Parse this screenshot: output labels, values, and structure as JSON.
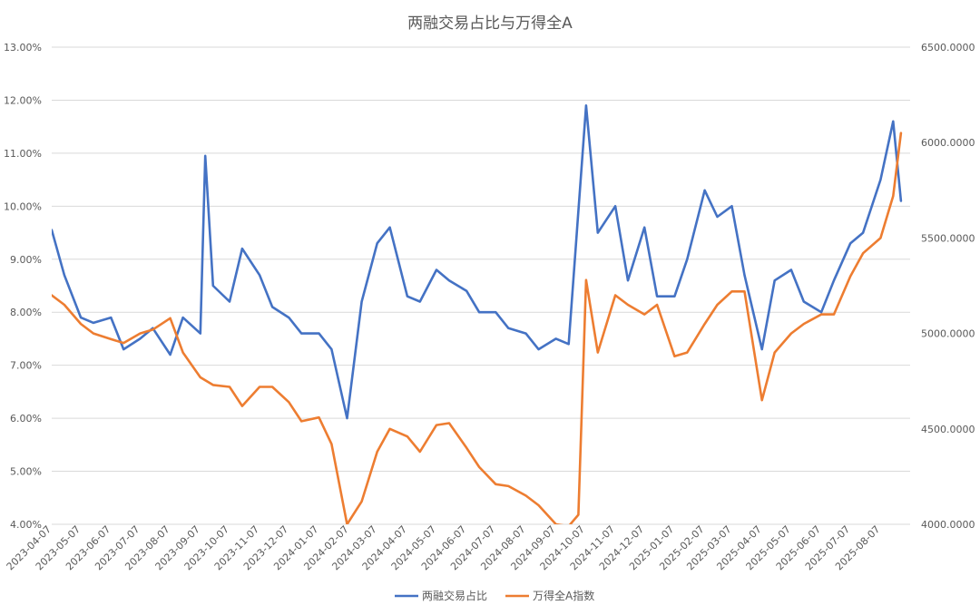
{
  "chart_data": {
    "type": "line",
    "title": "两融交易占比与万得全A",
    "x_tick_labels": [
      "2023-04-07",
      "2023-05-07",
      "2023-06-07",
      "2023-07-07",
      "2023-08-07",
      "2023-09-07",
      "2023-10-07",
      "2023-11-07",
      "2023-12-07",
      "2024-01-07",
      "2024-02-07",
      "2024-03-07",
      "2024-04-07",
      "2024-05-07",
      "2024-06-07",
      "2024-07-07",
      "2024-08-07",
      "2024-09-07",
      "2024-10-07",
      "2024-11-07",
      "2024-12-07",
      "2025-01-07",
      "2025-02-07",
      "2025-03-07",
      "2025-04-07",
      "2025-05-07",
      "2025-06-07",
      "2025-07-07",
      "2025-08-07"
    ],
    "y_left": {
      "ticks": [
        "4.00%",
        "5.00%",
        "6.00%",
        "7.00%",
        "8.00%",
        "9.00%",
        "10.00%",
        "11.00%",
        "12.00%",
        "13.00%"
      ],
      "min": 4,
      "max": 13
    },
    "y_right": {
      "ticks": [
        "4000.0000",
        "4500.0000",
        "5000.0000",
        "5500.0000",
        "6000.0000",
        "6500.0000"
      ],
      "min": 4000,
      "max": 6500
    },
    "grid": true,
    "legend_position": "bottom",
    "series": [
      {
        "name": "两融交易占比",
        "axis": "left",
        "color": "#4472C4",
        "x": [
          "2023-04-07",
          "2023-04-20",
          "2023-05-07",
          "2023-05-20",
          "2023-06-07",
          "2023-06-20",
          "2023-07-07",
          "2023-07-20",
          "2023-08-07",
          "2023-08-20",
          "2023-09-07",
          "2023-09-12",
          "2023-09-20",
          "2023-10-07",
          "2023-10-20",
          "2023-11-07",
          "2023-11-20",
          "2023-12-07",
          "2023-12-20",
          "2024-01-07",
          "2024-01-20",
          "2024-02-05",
          "2024-02-20",
          "2024-03-07",
          "2024-03-20",
          "2024-04-07",
          "2024-04-20",
          "2024-05-07",
          "2024-05-20",
          "2024-06-07",
          "2024-06-20",
          "2024-07-07",
          "2024-07-20",
          "2024-08-07",
          "2024-08-20",
          "2024-09-07",
          "2024-09-20",
          "2024-10-08",
          "2024-10-20",
          "2024-11-07",
          "2024-11-20",
          "2024-12-07",
          "2024-12-20",
          "2025-01-07",
          "2025-01-20",
          "2025-02-07",
          "2025-02-20",
          "2025-03-07",
          "2025-03-20",
          "2025-04-07",
          "2025-04-20",
          "2025-05-07",
          "2025-05-20",
          "2025-06-07",
          "2025-06-20",
          "2025-07-07",
          "2025-07-20",
          "2025-08-07",
          "2025-08-20",
          "2025-08-28"
        ],
        "values": [
          9.55,
          8.7,
          7.9,
          7.8,
          7.9,
          7.3,
          7.5,
          7.7,
          7.2,
          7.9,
          7.6,
          10.95,
          8.5,
          8.2,
          9.2,
          8.7,
          8.1,
          7.9,
          7.6,
          7.6,
          7.3,
          6.0,
          8.2,
          9.3,
          9.6,
          8.3,
          8.2,
          8.8,
          8.6,
          8.4,
          8.0,
          8.0,
          7.7,
          7.6,
          7.3,
          7.5,
          7.4,
          11.9,
          9.5,
          10.0,
          8.6,
          9.6,
          8.3,
          8.3,
          9.0,
          10.3,
          9.8,
          10.0,
          8.7,
          7.3,
          8.6,
          8.8,
          8.2,
          8.0,
          8.6,
          9.3,
          9.5,
          10.5,
          11.6,
          10.1
        ]
      },
      {
        "name": "万得全A指数",
        "axis": "right",
        "color": "#ED7D31",
        "x": [
          "2023-04-07",
          "2023-04-20",
          "2023-05-07",
          "2023-05-20",
          "2023-06-07",
          "2023-06-20",
          "2023-07-07",
          "2023-07-20",
          "2023-08-07",
          "2023-08-20",
          "2023-09-07",
          "2023-09-20",
          "2023-10-07",
          "2023-10-20",
          "2023-11-07",
          "2023-11-20",
          "2023-12-07",
          "2023-12-20",
          "2024-01-07",
          "2024-01-20",
          "2024-02-05",
          "2024-02-20",
          "2024-03-07",
          "2024-03-20",
          "2024-04-07",
          "2024-04-20",
          "2024-05-07",
          "2024-05-20",
          "2024-06-07",
          "2024-06-20",
          "2024-07-07",
          "2024-07-20",
          "2024-08-07",
          "2024-08-20",
          "2024-09-07",
          "2024-09-20",
          "2024-09-30",
          "2024-10-08",
          "2024-10-20",
          "2024-11-07",
          "2024-11-20",
          "2024-12-07",
          "2024-12-20",
          "2025-01-07",
          "2025-01-20",
          "2025-02-07",
          "2025-02-20",
          "2025-03-07",
          "2025-03-20",
          "2025-04-07",
          "2025-04-20",
          "2025-05-07",
          "2025-05-20",
          "2025-06-07",
          "2025-06-20",
          "2025-07-07",
          "2025-07-20",
          "2025-08-07",
          "2025-08-20",
          "2025-08-28"
        ],
        "values": [
          5200,
          5150,
          5050,
          5000,
          4970,
          4950,
          5000,
          5020,
          5080,
          4900,
          4770,
          4730,
          4720,
          4620,
          4720,
          4720,
          4640,
          4540,
          4560,
          4420,
          4000,
          4120,
          4380,
          4500,
          4460,
          4380,
          4520,
          4530,
          4400,
          4300,
          4210,
          4200,
          4150,
          4100,
          4000,
          3990,
          4050,
          5280,
          4900,
          5200,
          5150,
          5100,
          5150,
          4880,
          4900,
          5050,
          5150,
          5220,
          5220,
          4650,
          4900,
          5000,
          5050,
          5100,
          5100,
          5300,
          5420,
          5500,
          5720,
          6050
        ]
      }
    ]
  }
}
